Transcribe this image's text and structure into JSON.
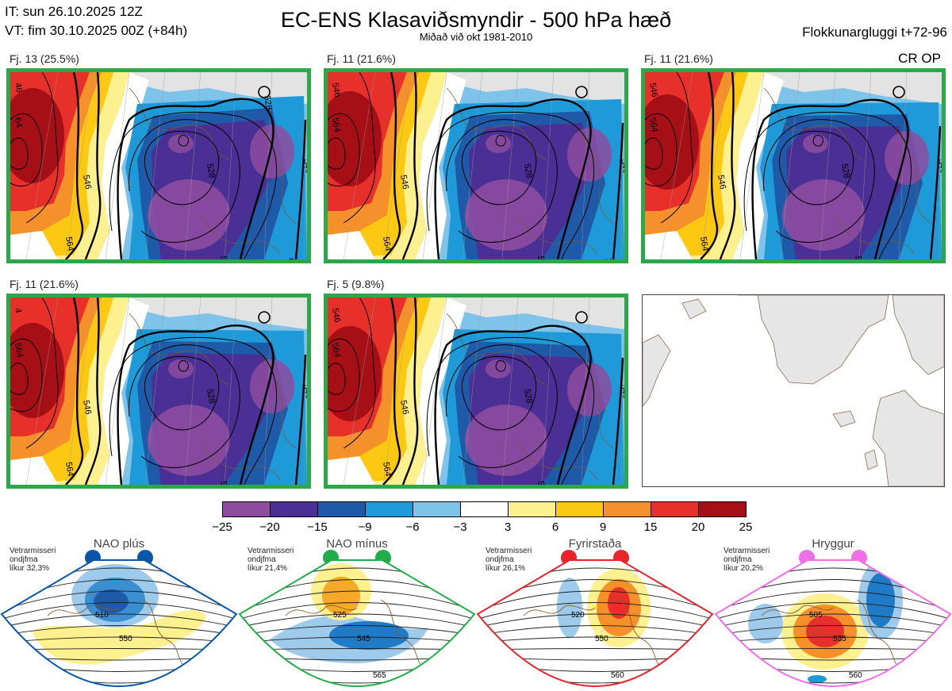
{
  "header": {
    "it_line": "IT: sun 26.10.2025 12Z",
    "vt_line": "VT: fim 30.10.2025 00Z  (+84h)",
    "title": "EC-ENS Klasaviðsmyndir - 500 hPa hæð",
    "subtitle": "Miðað við okt 1981-2010",
    "window": "Flokkunargluggi t+72-96"
  },
  "panels": [
    {
      "label": "Fj. 13 (25.5%)",
      "contours": [
        "46",
        "64",
        "546",
        "564",
        "528",
        "546",
        "546",
        "64",
        "528"
      ]
    },
    {
      "label": "Fj. 11 (21.6%)",
      "contours": [
        "546",
        "564",
        "546",
        "564",
        "528",
        "546",
        "546",
        "28"
      ]
    },
    {
      "label": "Fj. 11 (21.6%)",
      "tag": "CR OP",
      "contours": [
        "546",
        "564",
        "546",
        "564",
        "528",
        "546",
        "56"
      ]
    },
    {
      "label": "Fj. 11 (21.6%)",
      "contours": [
        "4",
        "564",
        "546",
        "564",
        "528",
        "546",
        "564"
      ]
    },
    {
      "label": "Fj. 5 (9.8%)",
      "contours": [
        "546",
        "564",
        "546",
        "564",
        "528",
        "546",
        "564"
      ]
    }
  ],
  "colorbar": {
    "colors": [
      "#8e4ba0",
      "#4a2f94",
      "#1f5aa8",
      "#1f9ad8",
      "#7ec3ea",
      "#ffffff",
      "#fdf08e",
      "#fcc812",
      "#f5902a",
      "#e8302a",
      "#a50f15"
    ],
    "ticks": [
      "−25",
      "−20",
      "−15",
      "−9",
      "−6",
      "−3",
      "3",
      "6",
      "9",
      "15",
      "20",
      "25"
    ]
  },
  "regimes": [
    {
      "title": "NAO plús",
      "text": [
        "Vetrarmisseri",
        "ondjfma",
        "líkur 32,3%"
      ],
      "color": "#0a56a8",
      "contour_labels": [
        "510",
        "550"
      ]
    },
    {
      "title": "NAO mínus",
      "text": [
        "Vetrarmisseri",
        "ondjfma",
        "líkur 21,4%"
      ],
      "color": "#22ad4a",
      "contour_labels": [
        "525",
        "545",
        "565"
      ]
    },
    {
      "title": "Fyrirstaða",
      "text": [
        "Vetrarmisseri",
        "ondjfma",
        "líkur 26,1%"
      ],
      "color": "#e8242c",
      "contour_labels": [
        "520",
        "550",
        "560"
      ]
    },
    {
      "title": "Hryggur",
      "text": [
        "Vetrarmisseri",
        "ondjfma",
        "líkur 20,2%"
      ],
      "color": "#ee6fe8",
      "contour_labels": [
        "505",
        "535",
        "560"
      ]
    }
  ]
}
